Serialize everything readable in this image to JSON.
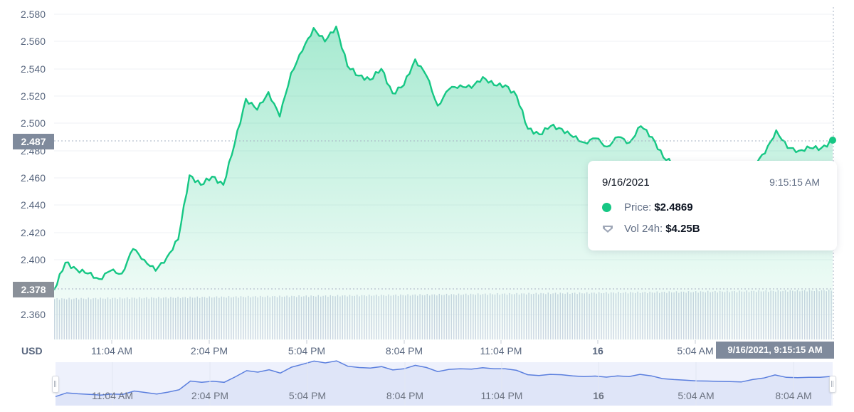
{
  "chart_data": {
    "type": "line",
    "title": "",
    "currency_label": "USD",
    "ylabel": "USD",
    "xlabel": "",
    "ylim": [
      2.355,
      2.582
    ],
    "y_ticks": [
      "2.580",
      "2.560",
      "2.540",
      "2.520",
      "2.500",
      "2.480",
      "2.460",
      "2.440",
      "2.420",
      "2.400",
      "2.360"
    ],
    "x_ticks": [
      "11:04 AM",
      "2:04 PM",
      "5:04 PM",
      "8:04 PM",
      "11:04 PM",
      "16",
      "5:04 AM"
    ],
    "grid": true,
    "series": [
      {
        "name": "Price",
        "color": "#16c784",
        "x": [
          "9:04 AM",
          "9:30 AM",
          "10:00 AM",
          "10:30 AM",
          "11:00 AM",
          "11:30 AM",
          "12:00 PM",
          "12:30 PM",
          "1:00 PM",
          "1:30 PM",
          "2:00 PM",
          "2:30 PM",
          "2:45 PM",
          "3:00 PM",
          "3:15 PM",
          "3:30 PM",
          "3:45 PM",
          "4:00 PM",
          "4:15 PM",
          "4:30 PM",
          "4:45 PM",
          "5:00 PM",
          "5:15 PM",
          "5:30 PM",
          "5:45 PM",
          "6:00 PM",
          "6:15 PM",
          "6:30 PM",
          "6:45 PM",
          "7:00 PM",
          "7:15 PM",
          "7:30 PM",
          "7:45 PM",
          "8:00 PM",
          "8:15 PM",
          "8:30 PM",
          "8:45 PM",
          "9:00 PM",
          "9:15 PM",
          "9:30 PM",
          "9:45 PM",
          "10:00 PM",
          "10:15 PM",
          "10:30 PM",
          "10:45 PM",
          "11:00 PM",
          "11:15 PM",
          "11:30 PM",
          "11:45 PM",
          "12:00 AM",
          "12:15 AM",
          "12:30 AM",
          "12:45 AM",
          "1:00 AM",
          "1:30 AM",
          "2:00 AM",
          "2:30 AM",
          "3:00 AM",
          "3:30 AM",
          "4:00 AM",
          "4:30 AM",
          "5:00 AM",
          "5:30 AM",
          "6:00 AM",
          "6:30 AM",
          "7:00 AM",
          "7:30 AM",
          "8:00 AM",
          "8:30 AM",
          "9:15 AM"
        ],
        "values": [
          2.378,
          2.398,
          2.393,
          2.39,
          2.386,
          2.392,
          2.39,
          2.408,
          2.4,
          2.392,
          2.402,
          2.415,
          2.462,
          2.455,
          2.461,
          2.455,
          2.485,
          2.518,
          2.51,
          2.523,
          2.505,
          2.537,
          2.553,
          2.57,
          2.56,
          2.571,
          2.542,
          2.535,
          2.532,
          2.54,
          2.522,
          2.528,
          2.547,
          2.535,
          2.513,
          2.525,
          2.528,
          2.526,
          2.534,
          2.528,
          2.528,
          2.52,
          2.496,
          2.492,
          2.498,
          2.496,
          2.49,
          2.486,
          2.489,
          2.483,
          2.49,
          2.486,
          2.498,
          2.49,
          2.475,
          2.47,
          2.467,
          2.463,
          2.462,
          2.46,
          2.459,
          2.457,
          2.47,
          2.478,
          2.495,
          2.482,
          2.48,
          2.482,
          2.482,
          2.487
        ]
      },
      {
        "name": "Vol 24h",
        "color": "#cfd6e4",
        "values_note": "roughly flat volume bars across the range"
      }
    ],
    "crosshair": {
      "price_label": "2.487",
      "base_label": "2.378",
      "time_label": "9/16/2021, 9:15:15 AM"
    }
  },
  "tooltip": {
    "date": "9/16/2021",
    "time": "9:15:15 AM",
    "price_label": "Price:",
    "price_value": "$2.4869",
    "vol_label": "Vol 24h:",
    "vol_value": "$4.25B"
  },
  "navigator": {
    "labels": [
      "11:04 AM",
      "2:04 PM",
      "5:04 PM",
      "8:04 PM",
      "11:04 PM",
      "16",
      "5:04 AM",
      "8:04 AM"
    ]
  },
  "colors": {
    "price_line": "#16c784",
    "navigator_line": "#5b7fde",
    "label_box": "#7f8a9c"
  }
}
